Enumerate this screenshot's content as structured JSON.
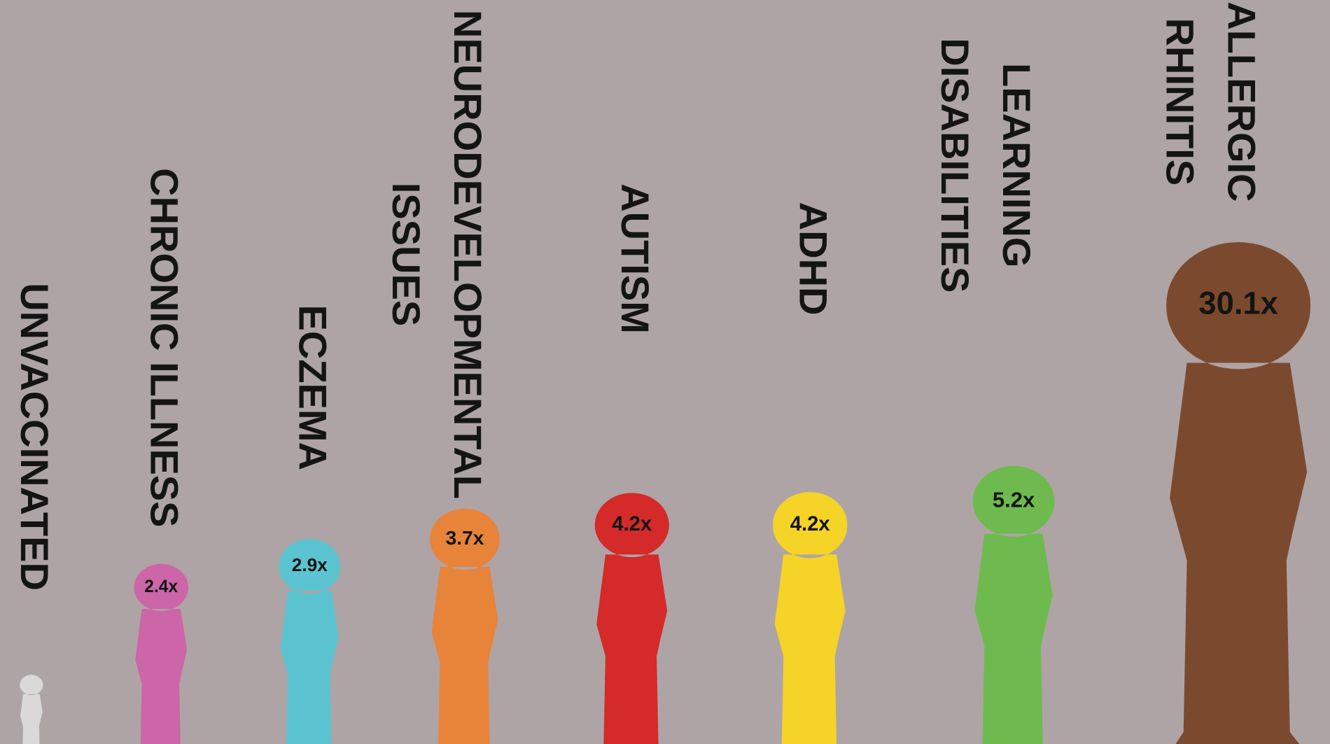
{
  "chart_data": {
    "type": "pictograph",
    "categories": [
      [
        "UNVACCINATED"
      ],
      [
        "CHRONIC ILLNESS"
      ],
      [
        "ECZEMA"
      ],
      [
        "NEURODEVELOPMENTAL",
        "ISSUES"
      ],
      [
        "AUTISM"
      ],
      [
        "ADHD"
      ],
      [
        "LEARNING",
        "DISABILITIES"
      ],
      [
        "ALLERGIC",
        "RHINITIS"
      ]
    ],
    "values": [
      1,
      2.4,
      2.9,
      3.7,
      4.2,
      4.2,
      5.2,
      30.1
    ],
    "value_labels": [
      null,
      "2.4x",
      "2.9x",
      "3.7x",
      "4.2x",
      "4.2x",
      "5.2x",
      "30.1x"
    ],
    "colors": [
      "#d9d9d9",
      "#cc66a8",
      "#5bc4d0",
      "#e8833a",
      "#d42a2a",
      "#f5d327",
      "#6fba4f",
      "#7b4a2e"
    ],
    "log_scale": true
  }
}
